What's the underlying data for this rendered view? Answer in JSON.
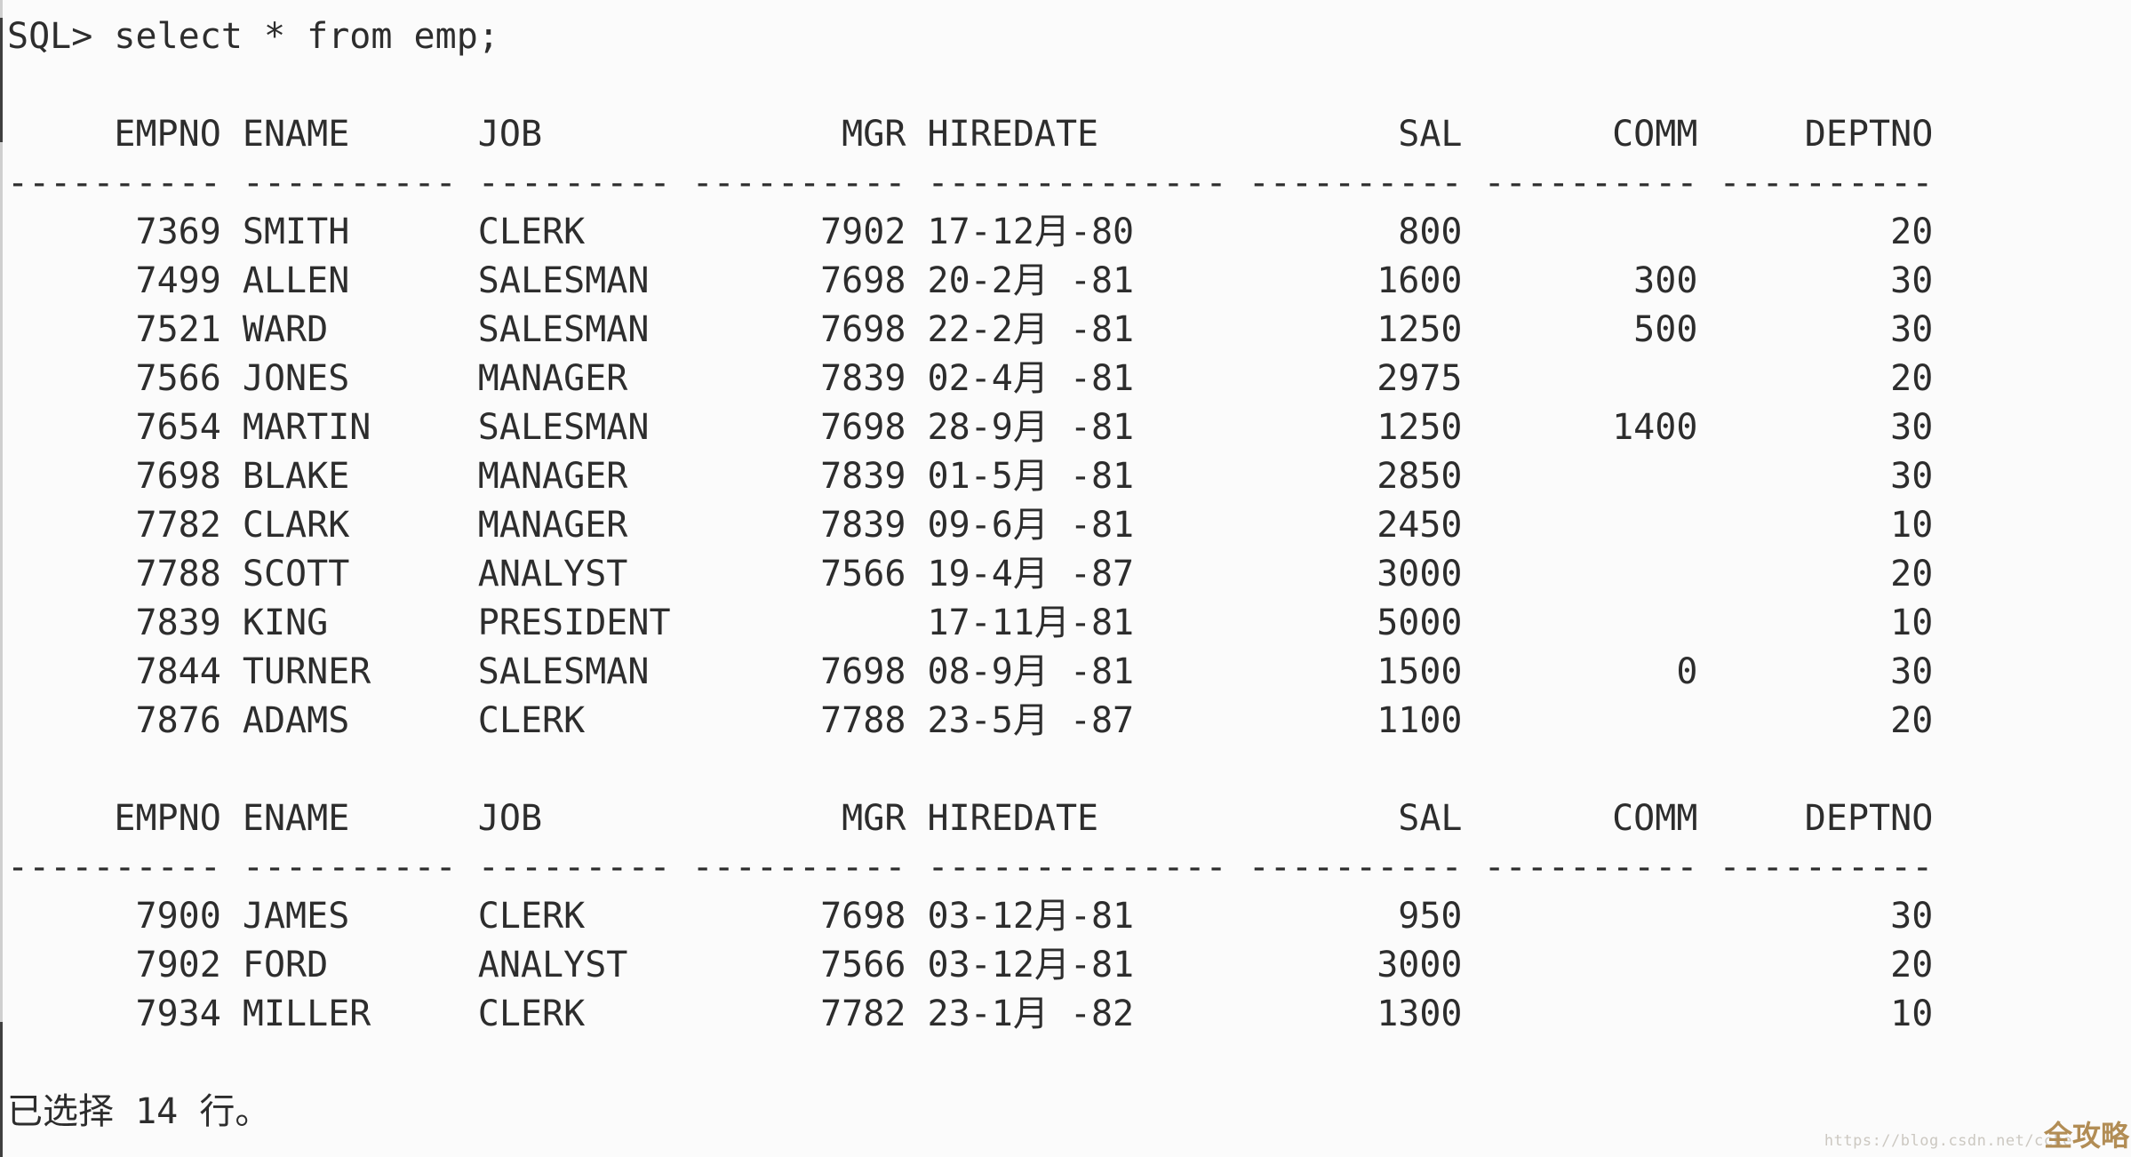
{
  "terminal": {
    "prompt": "SQL>",
    "command": "select * from emp;",
    "rows_selected_message": "已选择 14 行。",
    "text_color": "#2d2d2d",
    "background_color": "#fbfbfb"
  },
  "table": {
    "columns": [
      {
        "name": "EMPNO",
        "width": 10,
        "align": "right"
      },
      {
        "name": "ENAME",
        "width": 10,
        "align": "left"
      },
      {
        "name": "JOB",
        "width": 9,
        "align": "left"
      },
      {
        "name": "MGR",
        "width": 10,
        "align": "right"
      },
      {
        "name": "HIREDATE",
        "width": 14,
        "align": "left"
      },
      {
        "name": "SAL",
        "width": 10,
        "align": "right"
      },
      {
        "name": "COMM",
        "width": 10,
        "align": "right"
      },
      {
        "name": "DEPTNO",
        "width": 10,
        "align": "right"
      }
    ],
    "block1_rows": [
      [
        "7369",
        "SMITH",
        "CLERK",
        "7902",
        "17-12月-80",
        "800",
        "",
        "20"
      ],
      [
        "7499",
        "ALLEN",
        "SALESMAN",
        "7698",
        "20-2月 -81",
        "1600",
        "300",
        "30"
      ],
      [
        "7521",
        "WARD",
        "SALESMAN",
        "7698",
        "22-2月 -81",
        "1250",
        "500",
        "30"
      ],
      [
        "7566",
        "JONES",
        "MANAGER",
        "7839",
        "02-4月 -81",
        "2975",
        "",
        "20"
      ],
      [
        "7654",
        "MARTIN",
        "SALESMAN",
        "7698",
        "28-9月 -81",
        "1250",
        "1400",
        "30"
      ],
      [
        "7698",
        "BLAKE",
        "MANAGER",
        "7839",
        "01-5月 -81",
        "2850",
        "",
        "30"
      ],
      [
        "7782",
        "CLARK",
        "MANAGER",
        "7839",
        "09-6月 -81",
        "2450",
        "",
        "10"
      ],
      [
        "7788",
        "SCOTT",
        "ANALYST",
        "7566",
        "19-4月 -87",
        "3000",
        "",
        "20"
      ],
      [
        "7839",
        "KING",
        "PRESIDENT",
        "",
        "17-11月-81",
        "5000",
        "",
        "10"
      ],
      [
        "7844",
        "TURNER",
        "SALESMAN",
        "7698",
        "08-9月 -81",
        "1500",
        "0",
        "30"
      ],
      [
        "7876",
        "ADAMS",
        "CLERK",
        "7788",
        "23-5月 -87",
        "1100",
        "",
        "20"
      ]
    ],
    "block2_rows": [
      [
        "7900",
        "JAMES",
        "CLERK",
        "7698",
        "03-12月-81",
        "950",
        "",
        "30"
      ],
      [
        "7902",
        "FORD",
        "ANALYST",
        "7566",
        "03-12月-81",
        "3000",
        "",
        "20"
      ],
      [
        "7934",
        "MILLER",
        "CLERK",
        "7782",
        "23-1月 -82",
        "1300",
        "",
        "10"
      ]
    ]
  },
  "watermark": {
    "url_text": "https://blog.csdn.net/ccke",
    "badge_text": "全攻略",
    "url_color": "#ccc8c1",
    "badge_color": "#b28d55"
  }
}
